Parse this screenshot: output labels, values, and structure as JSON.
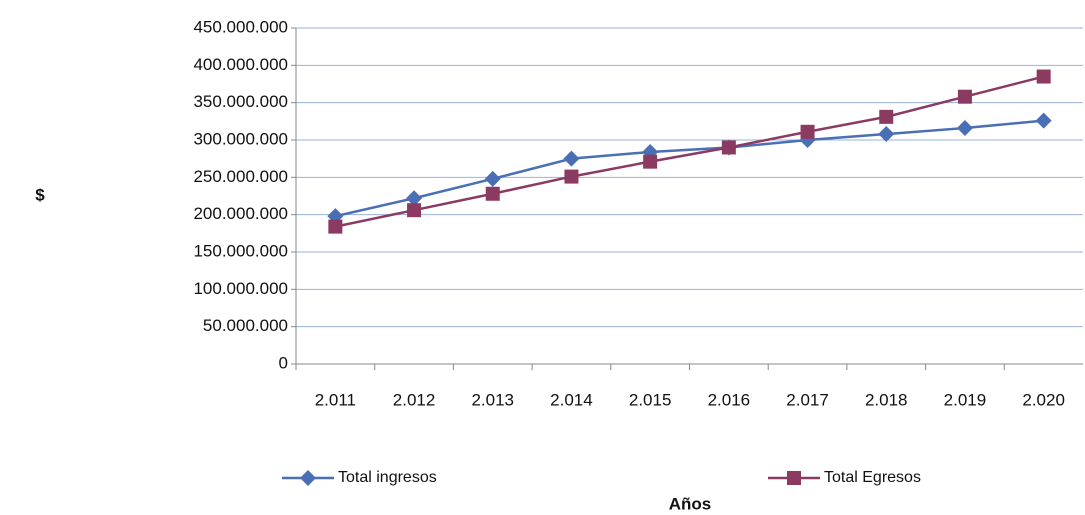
{
  "chart_data": {
    "type": "line",
    "y_label": "$",
    "x_label": "Años",
    "categories": [
      "2.011",
      "2.012",
      "2.013",
      "2.014",
      "2.015",
      "2.016",
      "2.017",
      "2.018",
      "2.019",
      "2.020"
    ],
    "series": [
      {
        "name": "Total ingresos",
        "color": "#4a6fb5",
        "marker": "diamond",
        "values": [
          198000000,
          222000000,
          248000000,
          275000000,
          284000000,
          290000000,
          300000000,
          308000000,
          316000000,
          326000000
        ]
      },
      {
        "name": "Total Egresos",
        "color": "#8b3a62",
        "marker": "square",
        "values": [
          184000000,
          206000000,
          228000000,
          251000000,
          271000000,
          290000000,
          311000000,
          331000000,
          358000000,
          385000000
        ]
      }
    ],
    "ylim": [
      0,
      450000000
    ],
    "yticks": [
      0,
      {
        "value": 50000000,
        "label": "50.000.000"
      },
      {
        "value": 100000000,
        "label": "100.000.000"
      },
      {
        "value": 150000000,
        "label": "150.000.000"
      },
      {
        "value": 200000000,
        "label": "200.000.000"
      },
      {
        "value": 250000000,
        "label": "250.000.000"
      },
      {
        "value": 300000000,
        "label": "300.000.000"
      },
      {
        "value": 350000000,
        "label": "350.000.000"
      },
      {
        "value": 400000000,
        "label": "400.000.000"
      },
      {
        "value": 450000000,
        "label": "450.000.000"
      }
    ],
    "grid": true
  }
}
